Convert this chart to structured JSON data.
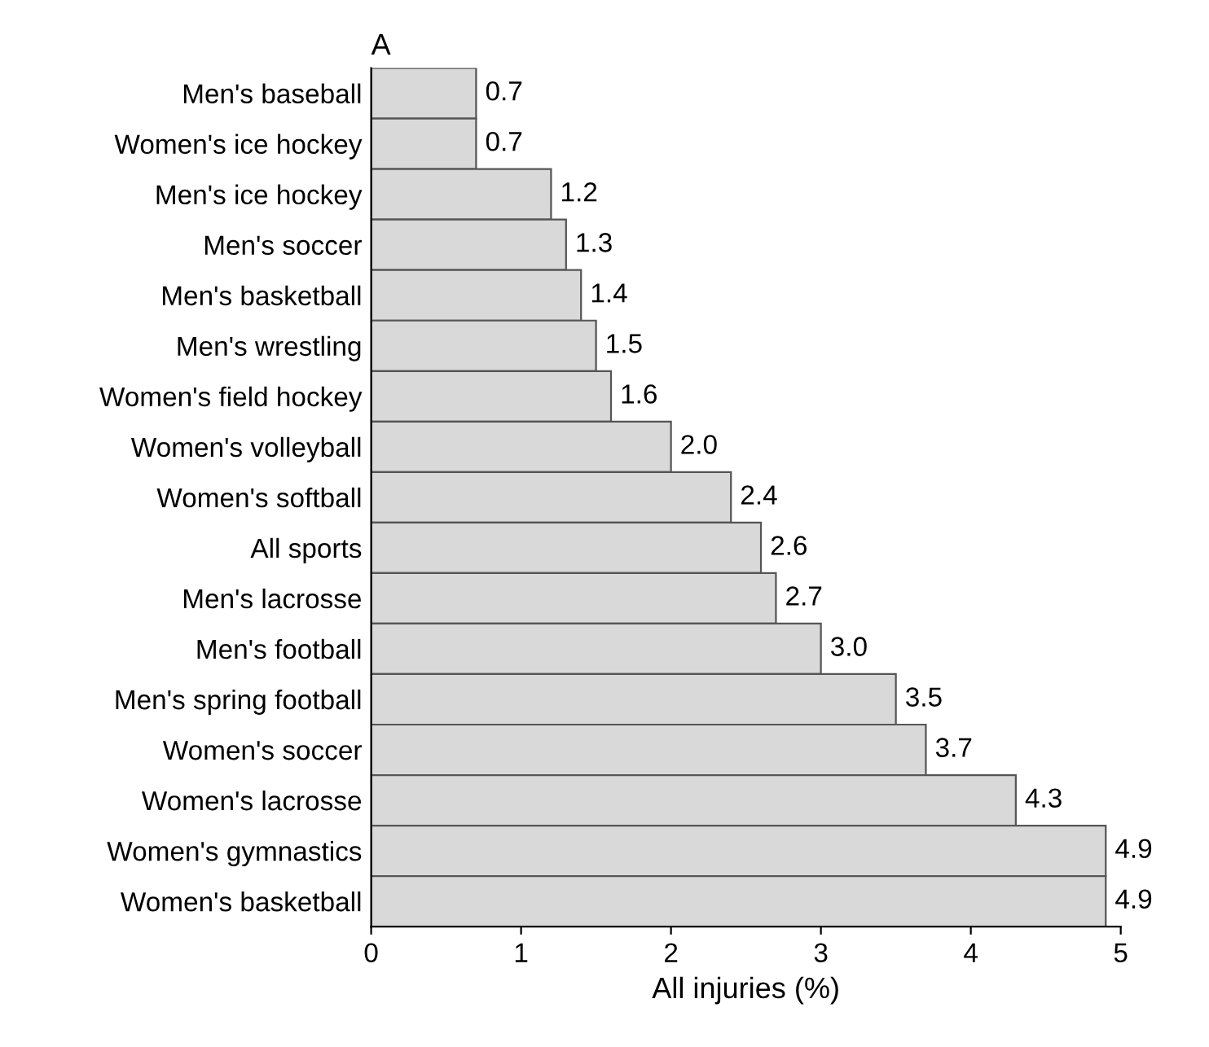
{
  "chart_data": {
    "type": "bar",
    "orientation": "horizontal",
    "title": "A",
    "xlabel": "All injuries (%)",
    "categories": [
      "Men's baseball",
      "Women's ice hockey",
      "Men's ice hockey",
      "Men's soccer",
      "Men's basketball",
      "Men's wrestling",
      "Women's field hockey",
      "Women's volleyball",
      "Women's softball",
      "All sports",
      "Men's lacrosse",
      "Men's football",
      "Men's spring football",
      "Women's soccer",
      "Women's lacrosse",
      "Women's gymnastics",
      "Women's basketball"
    ],
    "values": [
      0.7,
      0.7,
      1.2,
      1.3,
      1.4,
      1.5,
      1.6,
      2.0,
      2.4,
      2.6,
      2.7,
      3.0,
      3.5,
      3.7,
      4.3,
      4.9,
      4.9
    ],
    "value_labels": [
      "0.7",
      "0.7",
      "1.2",
      "1.3",
      "1.4",
      "1.5",
      "1.6",
      "2.0",
      "2.4",
      "2.6",
      "2.7",
      "3.0",
      "3.5",
      "3.7",
      "4.3",
      "4.9",
      "4.9"
    ],
    "color": "#d9d9d9",
    "xlim": [
      0,
      5
    ],
    "xticks": [
      0,
      1,
      2,
      3,
      4,
      5
    ],
    "grid": false
  }
}
